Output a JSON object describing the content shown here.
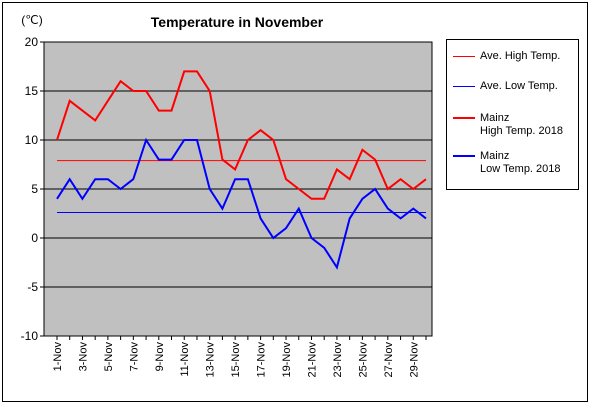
{
  "chart_data": {
    "type": "line",
    "title": "Temperature in November",
    "ylabel": "(℃)",
    "xlabel": "",
    "ylim": [
      -10,
      20
    ],
    "yticks": [
      20,
      15,
      10,
      5,
      0,
      -5,
      -10
    ],
    "grid": true,
    "plot_bg": "#c0c0c0",
    "legend_placement": "right",
    "x": [
      "1-Nov",
      "2-Nov",
      "3-Nov",
      "4-Nov",
      "5-Nov",
      "6-Nov",
      "7-Nov",
      "8-Nov",
      "9-Nov",
      "10-Nov",
      "11-Nov",
      "12-Nov",
      "13-Nov",
      "14-Nov",
      "15-Nov",
      "16-Nov",
      "17-Nov",
      "18-Nov",
      "19-Nov",
      "20-Nov",
      "21-Nov",
      "22-Nov",
      "23-Nov",
      "24-Nov",
      "25-Nov",
      "26-Nov",
      "27-Nov",
      "28-Nov",
      "29-Nov",
      "30-Nov"
    ],
    "xtick_labels": [
      "1-Nov",
      "3-Nov",
      "5-Nov",
      "7-Nov",
      "9-Nov",
      "11-Nov",
      "13-Nov",
      "15-Nov",
      "17-Nov",
      "19-Nov",
      "21-Nov",
      "23-Nov",
      "25-Nov",
      "27-Nov",
      "29-Nov"
    ],
    "series": [
      {
        "name": "Ave. High Temp.",
        "color": "#ff0000",
        "values": [
          7.9,
          7.9,
          7.9,
          7.9,
          7.9,
          7.9,
          7.9,
          7.9,
          7.9,
          7.9,
          7.9,
          7.9,
          7.9,
          7.9,
          7.9,
          7.9,
          7.9,
          7.9,
          7.9,
          7.9,
          7.9,
          7.9,
          7.9,
          7.9,
          7.9,
          7.9,
          7.9,
          7.9,
          7.9,
          7.9
        ]
      },
      {
        "name": "Ave. Low Temp.",
        "color": "#0000ff",
        "values": [
          2.6,
          2.6,
          2.6,
          2.6,
          2.6,
          2.6,
          2.6,
          2.6,
          2.6,
          2.6,
          2.6,
          2.6,
          2.6,
          2.6,
          2.6,
          2.6,
          2.6,
          2.6,
          2.6,
          2.6,
          2.6,
          2.6,
          2.6,
          2.6,
          2.6,
          2.6,
          2.6,
          2.6,
          2.6,
          2.6
        ]
      },
      {
        "name": "Mainz High Temp. 2018",
        "color": "#ff0000",
        "values": [
          10,
          14,
          13,
          12,
          14,
          16,
          15,
          15,
          13,
          13,
          17,
          17,
          15,
          8,
          7,
          10,
          11,
          10,
          6,
          5,
          4,
          4,
          7,
          6,
          9,
          8,
          5,
          6,
          5,
          6
        ]
      },
      {
        "name": "Mainz Low Temp. 2018",
        "color": "#0000ff",
        "values": [
          4,
          6,
          4,
          6,
          6,
          5,
          6,
          10,
          8,
          8,
          10,
          10,
          5,
          3,
          6,
          6,
          2,
          0,
          1,
          3,
          0,
          -1,
          -3,
          2,
          4,
          5,
          3,
          2,
          3,
          2
        ]
      }
    ]
  },
  "legend": {
    "items": [
      {
        "line1": "Ave. High Temp.",
        "line2": "",
        "color": "#ff0000",
        "width": 1
      },
      {
        "line1": "Ave. Low Temp.",
        "line2": "",
        "color": "#0000ff",
        "width": 1
      },
      {
        "line1": "Mainz",
        "line2": "High Temp. 2018",
        "color": "#ff0000",
        "width": 2
      },
      {
        "line1": "Mainz",
        "line2": "Low Temp. 2018",
        "color": "#0000ff",
        "width": 2
      }
    ]
  }
}
